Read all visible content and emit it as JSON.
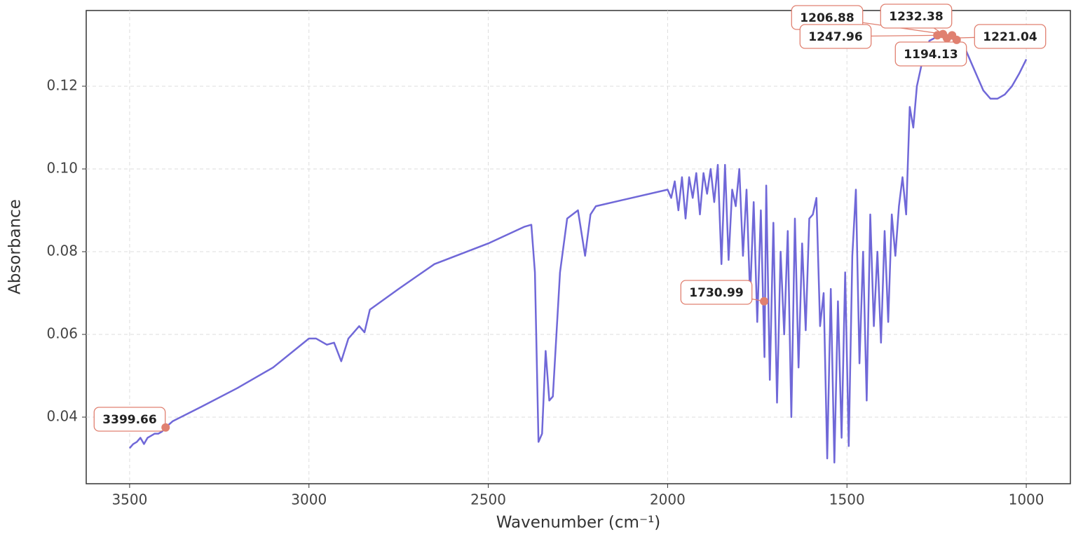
{
  "chart_data": {
    "type": "line",
    "xlabel": "Wavenumber (cm⁻¹)",
    "ylabel": "Absorbance",
    "color": "#7068d8",
    "annotation_color": "#e08070",
    "grid": true,
    "xlim": [
      3621,
      877
    ],
    "ylim": [
      0.0239,
      0.1383
    ],
    "xticks": [
      3500,
      3000,
      2500,
      2000,
      1500,
      1000
    ],
    "yticks": [
      0.04,
      0.06,
      0.08,
      {
        "value": 0.1,
        "label": "0.10"
      },
      0.12
    ],
    "x": [
      3500,
      3490,
      3480,
      3470,
      3460,
      3450,
      3440,
      3430,
      3420,
      3410,
      3400,
      3380,
      3300,
      3200,
      3100,
      3000,
      2980,
      2950,
      2930,
      2910,
      2890,
      2860,
      2845,
      2830,
      2750,
      2700,
      2650,
      2500,
      2400,
      2380,
      2370,
      2360,
      2350,
      2340,
      2330,
      2320,
      2300,
      2280,
      2250,
      2230,
      2215,
      2200,
      2100,
      2000,
      1990,
      1980,
      1970,
      1960,
      1950,
      1940,
      1930,
      1920,
      1910,
      1900,
      1890,
      1880,
      1870,
      1860,
      1850,
      1840,
      1830,
      1820,
      1810,
      1800,
      1790,
      1780,
      1770,
      1760,
      1750,
      1740,
      1730,
      1725,
      1715,
      1705,
      1695,
      1685,
      1675,
      1665,
      1655,
      1645,
      1635,
      1625,
      1615,
      1605,
      1595,
      1585,
      1575,
      1565,
      1555,
      1545,
      1535,
      1525,
      1515,
      1505,
      1495,
      1485,
      1475,
      1465,
      1455,
      1445,
      1435,
      1425,
      1415,
      1405,
      1395,
      1385,
      1375,
      1365,
      1355,
      1345,
      1335,
      1325,
      1315,
      1305,
      1290,
      1270,
      1248,
      1232,
      1221,
      1207,
      1194,
      1170,
      1150,
      1120,
      1100,
      1080,
      1060,
      1040,
      1020,
      1000
    ],
    "values": [
      0.0325,
      0.0335,
      0.034,
      0.035,
      0.0335,
      0.035,
      0.0355,
      0.036,
      0.036,
      0.0365,
      0.0375,
      0.039,
      0.0425,
      0.047,
      0.052,
      0.059,
      0.059,
      0.0575,
      0.058,
      0.0535,
      0.059,
      0.062,
      0.0605,
      0.066,
      0.071,
      0.074,
      0.077,
      0.082,
      0.086,
      0.0865,
      0.075,
      0.034,
      0.036,
      0.056,
      0.044,
      0.045,
      0.075,
      0.088,
      0.09,
      0.079,
      0.089,
      0.091,
      0.093,
      0.095,
      0.093,
      0.097,
      0.09,
      0.098,
      0.088,
      0.098,
      0.093,
      0.099,
      0.089,
      0.099,
      0.094,
      0.1,
      0.092,
      0.101,
      0.077,
      0.101,
      0.078,
      0.095,
      0.091,
      0.1,
      0.079,
      0.095,
      0.069,
      0.092,
      0.063,
      0.09,
      0.0545,
      0.096,
      0.049,
      0.087,
      0.0435,
      0.08,
      0.06,
      0.085,
      0.04,
      0.088,
      0.052,
      0.082,
      0.061,
      0.088,
      0.089,
      0.093,
      0.062,
      0.07,
      0.03,
      0.071,
      0.029,
      0.068,
      0.035,
      0.075,
      0.033,
      0.079,
      0.095,
      0.053,
      0.08,
      0.044,
      0.089,
      0.062,
      0.08,
      0.058,
      0.085,
      0.063,
      0.089,
      0.079,
      0.091,
      0.098,
      0.089,
      0.115,
      0.11,
      0.12,
      0.126,
      0.131,
      0.132,
      0.133,
      0.132,
      0.1315,
      0.131,
      0.129,
      0.125,
      0.119,
      0.117,
      0.117,
      0.118,
      0.12,
      0.123,
      0.1265
    ],
    "annotations": [
      {
        "x": 3399.66,
        "y": 0.0375
      },
      {
        "x": 1730.99,
        "y": 0.068
      },
      {
        "x": 1206.88,
        "y": 0.1323
      },
      {
        "x": 1232.38,
        "y": 0.1326
      },
      {
        "x": 1247.96,
        "y": 0.1323
      },
      {
        "x": 1221.04,
        "y": 0.1316
      },
      {
        "x": 1194.13,
        "y": 0.1312
      }
    ]
  }
}
